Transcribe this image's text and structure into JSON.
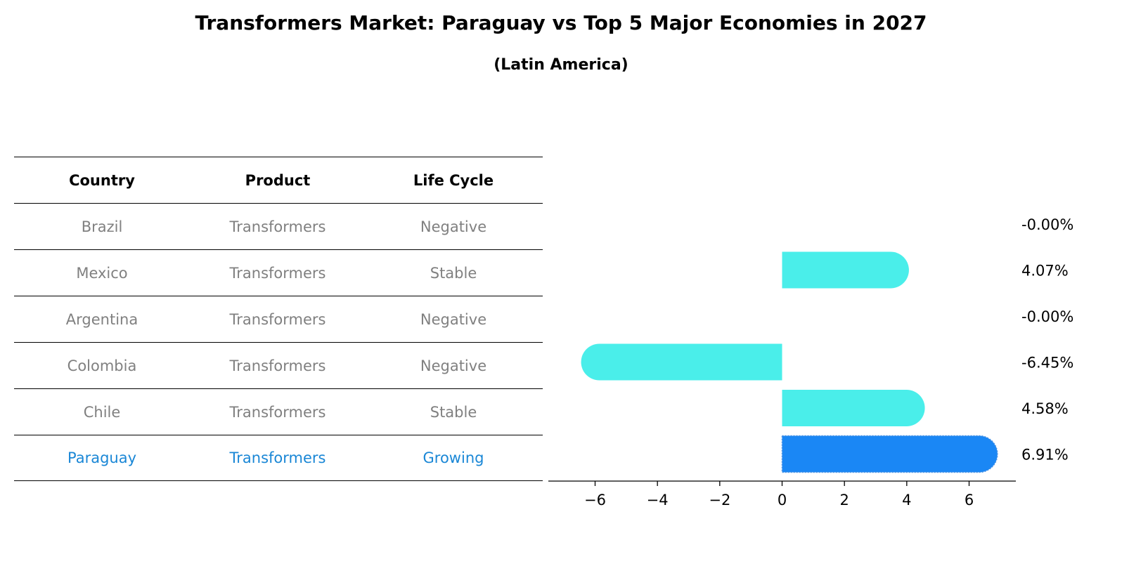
{
  "title": "Transformers Market: Paraguay vs Top 5 Major Economies in 2027",
  "subtitle": "(Latin America)",
  "table": {
    "headers": [
      "Country",
      "Product",
      "Life Cycle"
    ],
    "rows": [
      {
        "country": "Brazil",
        "product": "Transformers",
        "life_cycle": "Negative"
      },
      {
        "country": "Mexico",
        "product": "Transformers",
        "life_cycle": "Stable"
      },
      {
        "country": "Argentina",
        "product": "Transformers",
        "life_cycle": "Negative"
      },
      {
        "country": "Colombia",
        "product": "Transformers",
        "life_cycle": "Negative"
      },
      {
        "country": "Chile",
        "product": "Transformers",
        "life_cycle": "Stable"
      },
      {
        "country": "Paraguay",
        "product": "Transformers",
        "life_cycle": "Growing",
        "highlight": true
      }
    ]
  },
  "chart_data": {
    "type": "bar",
    "orientation": "horizontal",
    "categories": [
      "Brazil",
      "Mexico",
      "Argentina",
      "Colombia",
      "Chile",
      "Paraguay"
    ],
    "values": [
      -0.0,
      4.07,
      -0.0,
      -6.45,
      4.58,
      6.91
    ],
    "data_labels": [
      "-0.00%",
      "4.07%",
      "-0.00%",
      "-6.45%",
      "4.58%",
      "6.91%"
    ],
    "xlim": [
      -7.5,
      7.5
    ],
    "xticks": [
      -6,
      -4,
      -2,
      0,
      2,
      4,
      6
    ],
    "xtick_labels": [
      "−6",
      "−4",
      "−2",
      "0",
      "2",
      "4",
      "6"
    ],
    "grid": false,
    "colors": {
      "default": "#4aeeea",
      "highlight": "#1a87f5"
    },
    "highlight_category": "Paraguay"
  }
}
